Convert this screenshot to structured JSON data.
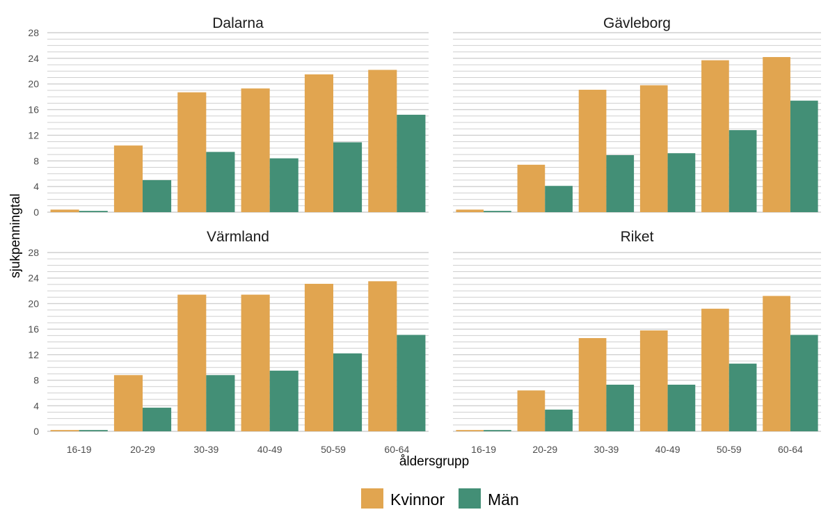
{
  "figure": {
    "ylabel": "sjukpenningtal",
    "xlabel": "åldersgrupp"
  },
  "colors": {
    "kvinnor": "#E1A550",
    "man": "#438F76",
    "grid": "#cfcfcf",
    "text": "#4d4d4d"
  },
  "legend": {
    "position": "bottom",
    "items": [
      {
        "label": "Kvinnor",
        "color": "#E1A550"
      },
      {
        "label": "Män",
        "color": "#438F76"
      }
    ]
  },
  "chart_data": [
    {
      "type": "bar",
      "title": "Dalarna",
      "categories": [
        "16-19",
        "20-29",
        "30-39",
        "40-49",
        "50-59",
        "60-64"
      ],
      "series": [
        {
          "name": "Kvinnor",
          "values": [
            0.4,
            10.4,
            18.7,
            19.3,
            21.5,
            22.2
          ]
        },
        {
          "name": "Män",
          "values": [
            0.2,
            5.0,
            9.4,
            8.4,
            10.9,
            15.2
          ]
        }
      ],
      "ylim": [
        0,
        28
      ],
      "yticks": [
        0,
        4,
        8,
        12,
        16,
        20,
        24,
        28
      ],
      "grid": true
    },
    {
      "type": "bar",
      "title": "Gävleborg",
      "categories": [
        "16-19",
        "20-29",
        "30-39",
        "40-49",
        "50-59",
        "60-64"
      ],
      "series": [
        {
          "name": "Kvinnor",
          "values": [
            0.4,
            7.4,
            19.1,
            19.8,
            23.7,
            24.2
          ]
        },
        {
          "name": "Män",
          "values": [
            0.2,
            4.1,
            8.9,
            9.2,
            12.8,
            17.4
          ]
        }
      ],
      "ylim": [
        0,
        28
      ],
      "yticks": [
        0,
        4,
        8,
        12,
        16,
        20,
        24,
        28
      ],
      "grid": true
    },
    {
      "type": "bar",
      "title": "Värmland",
      "categories": [
        "16-19",
        "20-29",
        "30-39",
        "40-49",
        "50-59",
        "60-64"
      ],
      "series": [
        {
          "name": "Kvinnor",
          "values": [
            0.2,
            8.8,
            21.4,
            21.4,
            23.1,
            23.5
          ]
        },
        {
          "name": "Män",
          "values": [
            0.2,
            3.7,
            8.8,
            9.5,
            12.2,
            15.1
          ]
        }
      ],
      "ylim": [
        0,
        28
      ],
      "yticks": [
        0,
        4,
        8,
        12,
        16,
        20,
        24,
        28
      ],
      "grid": true
    },
    {
      "type": "bar",
      "title": "Riket",
      "categories": [
        "16-19",
        "20-29",
        "30-39",
        "40-49",
        "50-59",
        "60-64"
      ],
      "series": [
        {
          "name": "Kvinnor",
          "values": [
            0.2,
            6.4,
            14.6,
            15.8,
            19.2,
            21.2
          ]
        },
        {
          "name": "Män",
          "values": [
            0.2,
            3.4,
            7.3,
            7.3,
            10.6,
            15.1
          ]
        }
      ],
      "ylim": [
        0,
        28
      ],
      "yticks": [
        0,
        4,
        8,
        12,
        16,
        20,
        24,
        28
      ],
      "grid": true
    }
  ]
}
